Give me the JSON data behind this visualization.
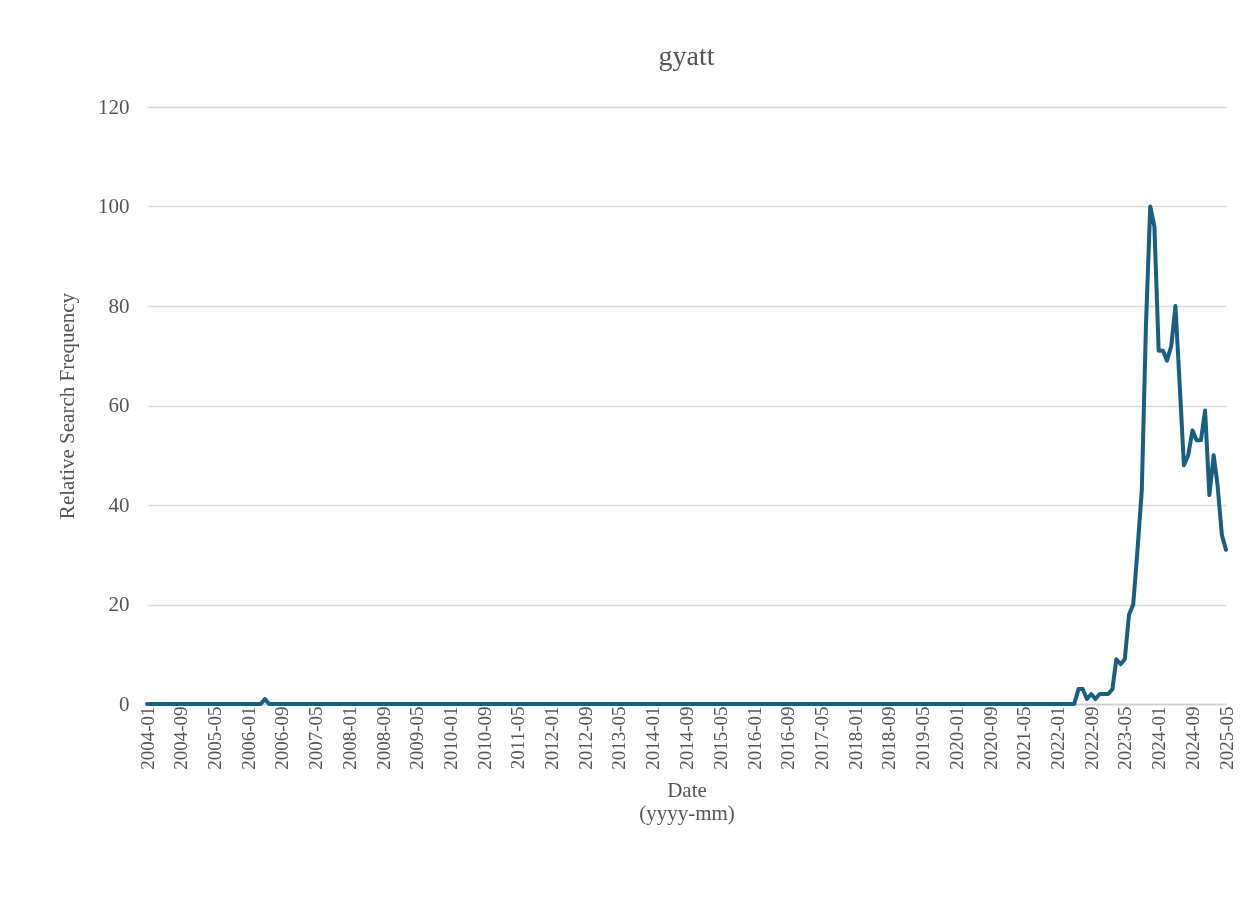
{
  "chart_data": {
    "type": "line",
    "title": "gyatt",
    "xlabel": "Date\n(yyyy-mm)",
    "ylabel": "Relative Search Frequency",
    "x": [
      "2004-01",
      "2006-04",
      "2006-05",
      "2006-06",
      "2022-05",
      "2022-06",
      "2022-07",
      "2022-08",
      "2022-09",
      "2022-10",
      "2022-11",
      "2022-12",
      "2023-01",
      "2023-02",
      "2023-03",
      "2023-04",
      "2023-05",
      "2023-06",
      "2023-07",
      "2023-08",
      "2023-09",
      "2023-10",
      "2023-11",
      "2023-12",
      "2024-01",
      "2024-02",
      "2024-03",
      "2024-04",
      "2024-05",
      "2024-06",
      "2024-07",
      "2024-08",
      "2024-09",
      "2024-10",
      "2024-11",
      "2024-12",
      "2025-01",
      "2025-02",
      "2025-03",
      "2025-04",
      "2025-05"
    ],
    "series": [
      {
        "color": "#1a5e80",
        "values": [
          0,
          0,
          1,
          0,
          0,
          3,
          3,
          1,
          2,
          1,
          2,
          2,
          2,
          3,
          9,
          8,
          9,
          18,
          20,
          31,
          43,
          76,
          100,
          96,
          71,
          71,
          69,
          72,
          80,
          64,
          48,
          50,
          55,
          53,
          53,
          59,
          42,
          50,
          44,
          34,
          31
        ]
      }
    ],
    "xlim": [
      "2004-01",
      "2025-05"
    ],
    "xticks": [
      "2004-01",
      "2004-09",
      "2005-05",
      "2006-01",
      "2006-09",
      "2007-05",
      "2008-01",
      "2008-09",
      "2009-05",
      "2010-01",
      "2010-09",
      "2011-05",
      "2012-01",
      "2012-09",
      "2013-05",
      "2014-01",
      "2014-09",
      "2015-05",
      "2016-01",
      "2016-09",
      "2017-05",
      "2018-01",
      "2018-09",
      "2019-05",
      "2020-01",
      "2020-09",
      "2021-05",
      "2022-01",
      "2022-09",
      "2023-05",
      "2024-01",
      "2024-09",
      "2025-05"
    ],
    "ylim": [
      0,
      120
    ],
    "yticks": [
      0,
      20,
      40,
      60,
      80,
      100,
      120
    ],
    "grid": "y"
  }
}
